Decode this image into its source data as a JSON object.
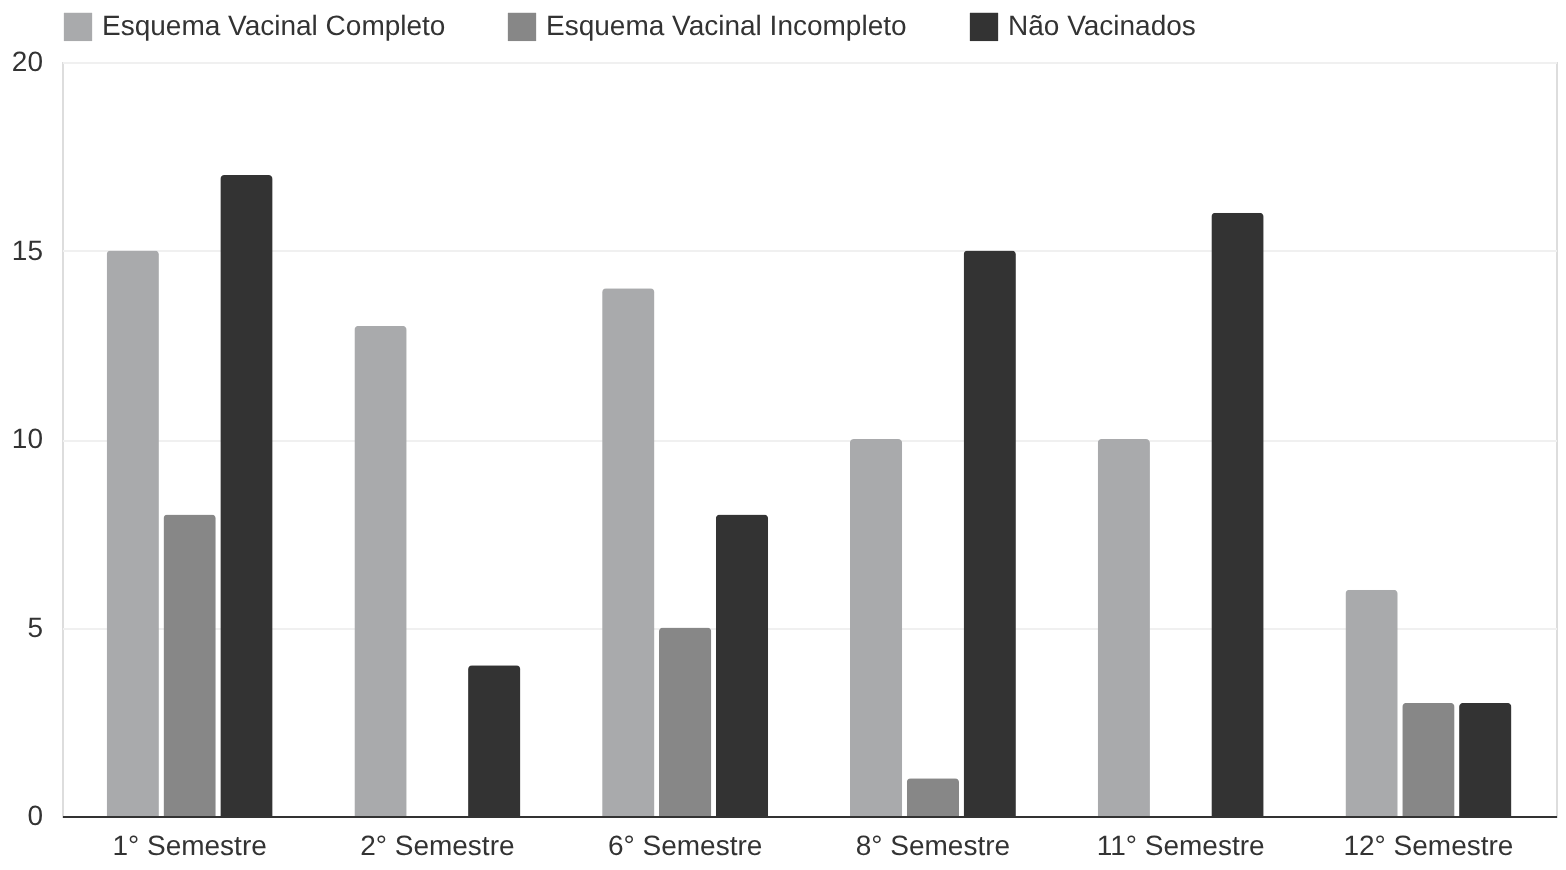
{
  "chart_data": {
    "type": "bar",
    "categories": [
      "1° Semestre",
      "2° Semestre",
      "6° Semestre",
      "8° Semestre",
      "11° Semestre",
      "12° Semestre"
    ],
    "series": [
      {
        "name": "Esquema Vacinal Completo",
        "color": "#a9aaac",
        "values": [
          15,
          13,
          14,
          10,
          10,
          6
        ]
      },
      {
        "name": "Esquema Vacinal Incompleto",
        "color": "#878787",
        "values": [
          8,
          0,
          5,
          1,
          0,
          3
        ]
      },
      {
        "name": "Não Vacinados",
        "color": "#333333",
        "values": [
          17,
          4,
          8,
          15,
          16,
          3
        ]
      }
    ],
    "ylim": [
      0,
      20
    ],
    "yticks": [
      0,
      5,
      10,
      15,
      20
    ],
    "grid": "y",
    "legend": "top left"
  }
}
